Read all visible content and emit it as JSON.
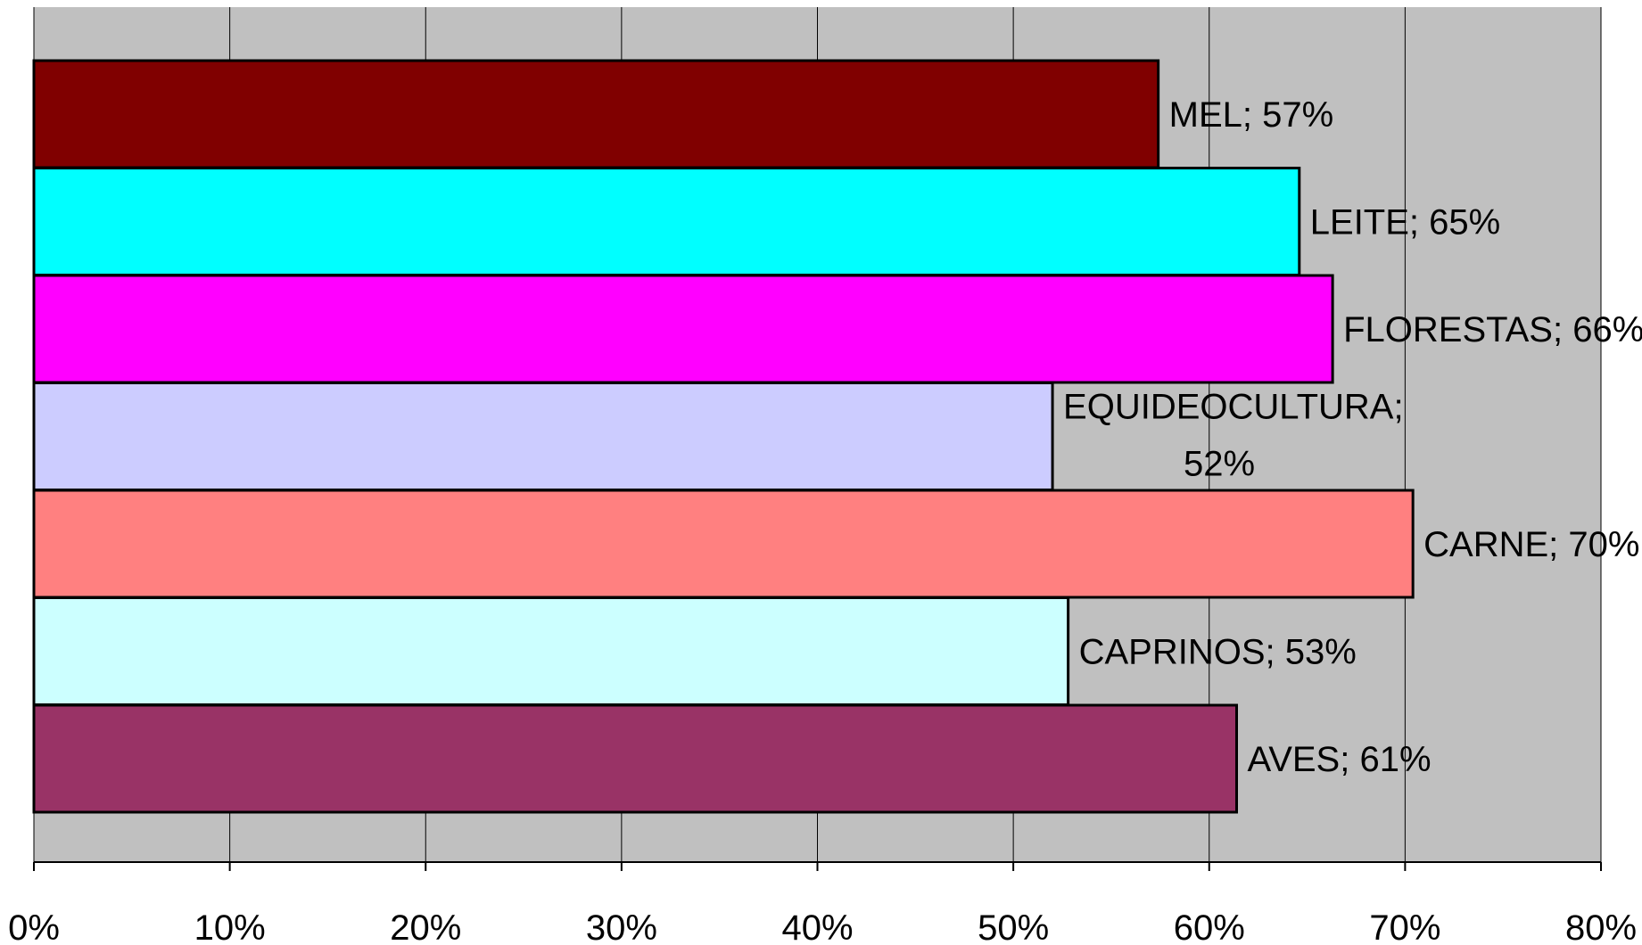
{
  "chart_data": {
    "type": "bar",
    "orientation": "horizontal",
    "categories": [
      "MEL",
      "LEITE",
      "FLORESTAS",
      "EQUIDEOCULTURA",
      "CARNE",
      "CAPRINOS",
      "AVES"
    ],
    "values": [
      57.4,
      64.6,
      66.3,
      52.0,
      70.4,
      52.8,
      61.4
    ],
    "data_labels": [
      [
        "MEL; 57%"
      ],
      [
        "LEITE; 65%"
      ],
      [
        "FLORESTAS; 66%"
      ],
      [
        "EQUIDEOCULTURA;",
        "52%"
      ],
      [
        "CARNE; 70%"
      ],
      [
        "CAPRINOS; 53%"
      ],
      [
        "AVES; 61%"
      ]
    ],
    "bar_colors": [
      "#800000",
      "#00FFFF",
      "#FF00FF",
      "#CCCCFF",
      "#FF8080",
      "#CCFFFF",
      "#993366"
    ],
    "xlim": [
      0,
      80
    ],
    "x_ticks": [
      0,
      10,
      20,
      30,
      40,
      50,
      60,
      70,
      80
    ],
    "x_tick_labels": [
      "0%",
      "10%",
      "20%",
      "30%",
      "40%",
      "50%",
      "60%",
      "70%",
      "80%"
    ],
    "plot_background": "#C0C0C0",
    "gridlines": "vertical",
    "legend": "none",
    "title": "",
    "xlabel": "",
    "ylabel": ""
  }
}
